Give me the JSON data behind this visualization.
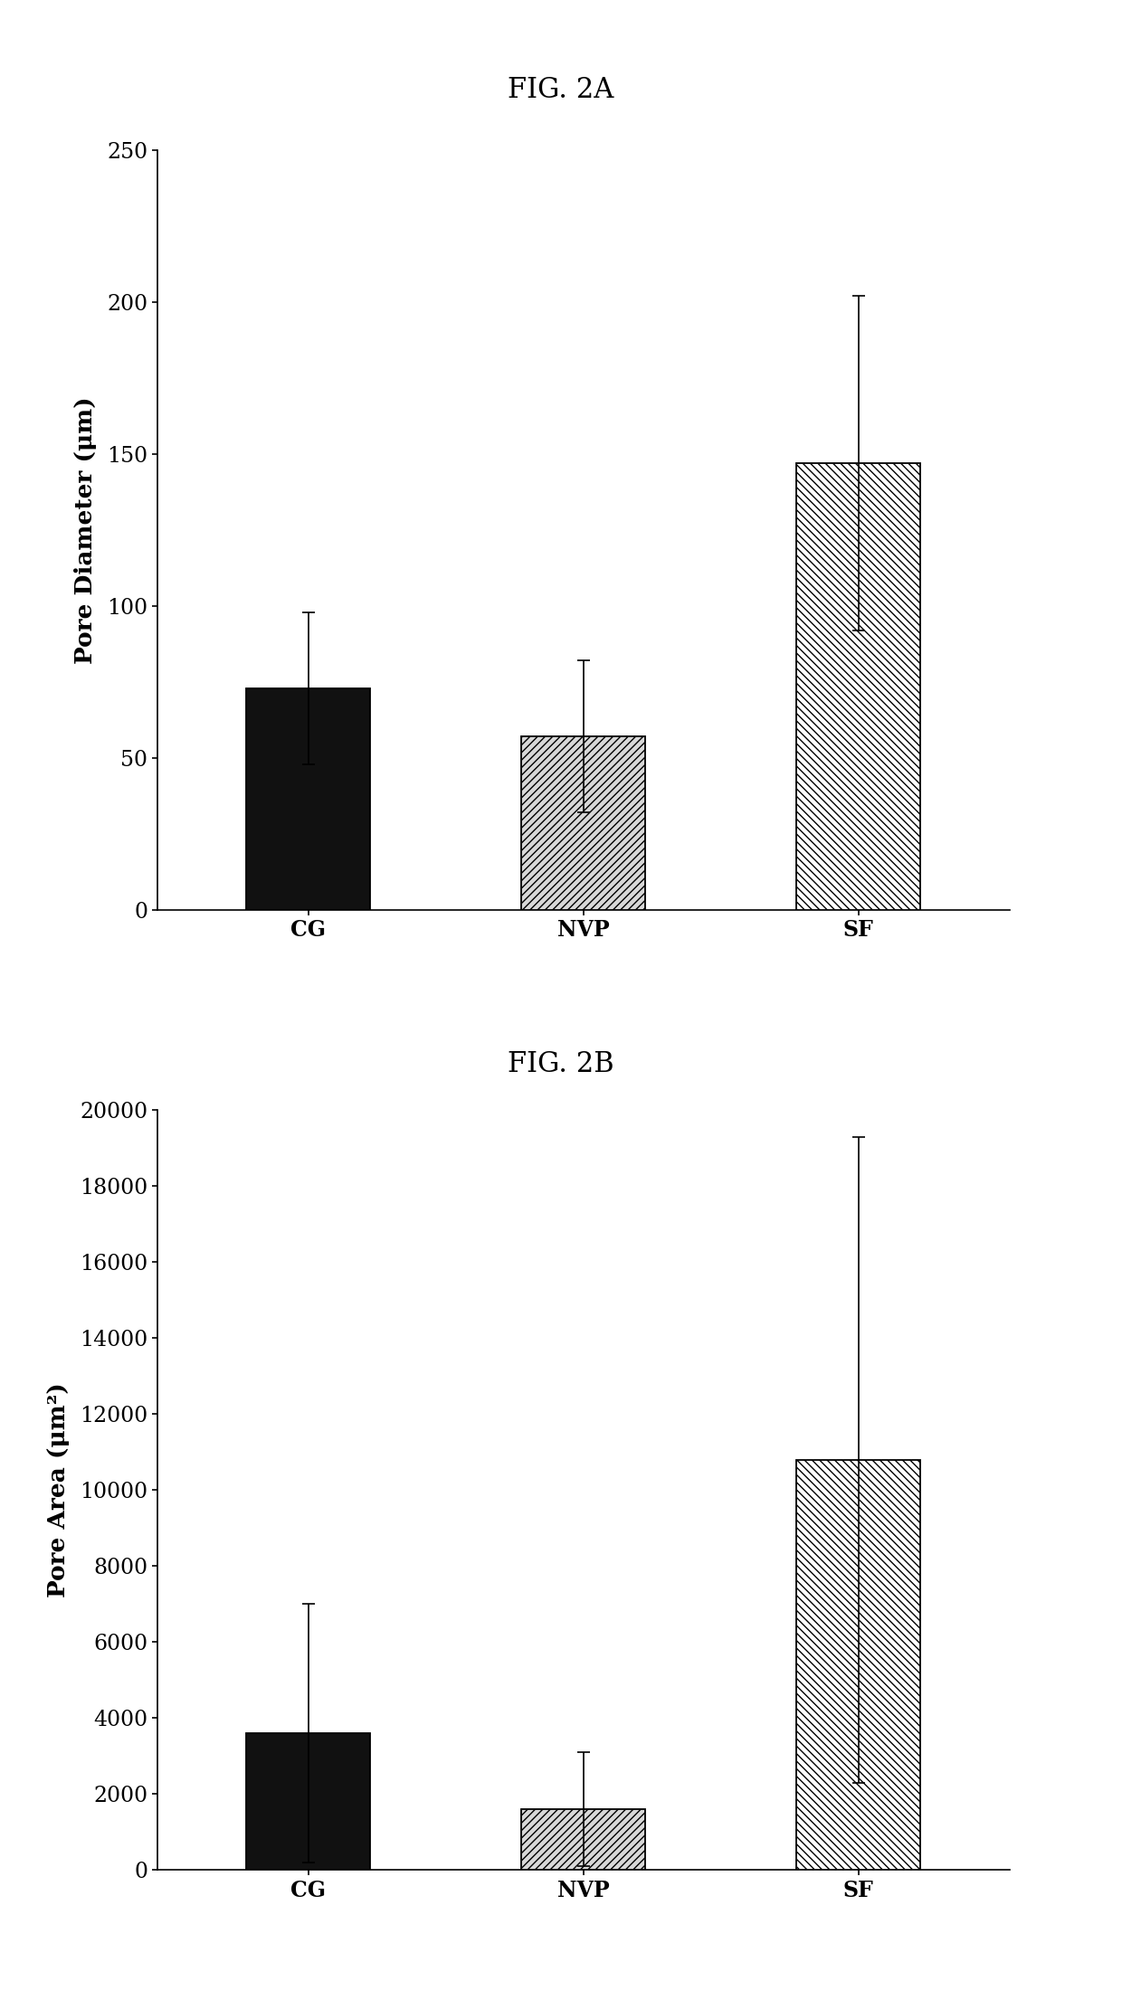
{
  "fig2a": {
    "title": "FIG. 2A",
    "categories": [
      "CG",
      "NVP",
      "SF"
    ],
    "values": [
      73,
      57,
      147
    ],
    "errors": [
      25,
      25,
      55
    ],
    "ylabel": "Pore Diameter (μm)",
    "ylim": [
      0,
      250
    ],
    "yticks": [
      0,
      50,
      100,
      150,
      200,
      250
    ]
  },
  "fig2b": {
    "title": "FIG. 2B",
    "categories": [
      "CG",
      "NVP",
      "SF"
    ],
    "values": [
      3600,
      1600,
      10800
    ],
    "errors": [
      3400,
      1500,
      8500
    ],
    "ylabel": "Pore Area (μm²)",
    "ylim": [
      0,
      20000
    ],
    "yticks": [
      0,
      2000,
      4000,
      6000,
      8000,
      10000,
      12000,
      14000,
      16000,
      18000,
      20000
    ]
  },
  "bar_patterns": [
    "solid",
    "hatch_fine",
    "hatch_bold"
  ],
  "background_color": "#ffffff",
  "title_fontsize": 22,
  "label_fontsize": 19,
  "tick_fontsize": 17,
  "bar_width": 0.45,
  "figure_width": 12.4,
  "figure_height": 22.11
}
